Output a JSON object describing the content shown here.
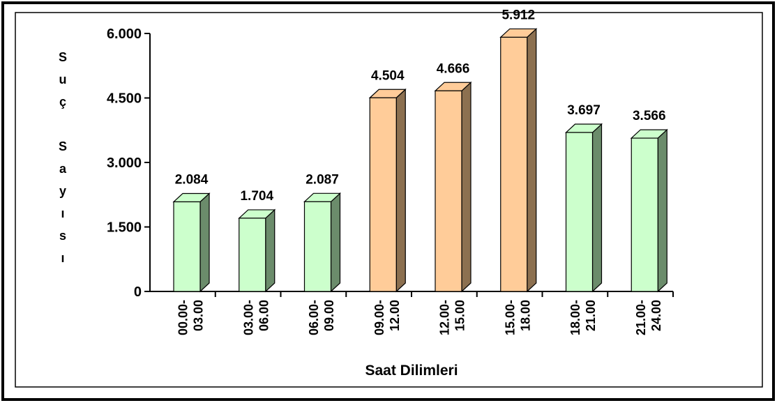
{
  "chart_data": {
    "type": "bar3d",
    "x_label": "Saat Dilimleri",
    "y_label": "Suç Sayısı",
    "categories": [
      "00.00- 03.00",
      "03.00- 06.00",
      "06.00- 09.00",
      "09.00- 12.00",
      "12.00- 15.00",
      "15.00- 18.00",
      "18.00- 21.00",
      "21.00- 24.00"
    ],
    "values": [
      2084,
      1704,
      2087,
      4504,
      4666,
      5912,
      3697,
      3566
    ],
    "value_labels": [
      "2.084",
      "1.704",
      "2.087",
      "4.504",
      "4.666",
      "5.912",
      "3.697",
      "3.566"
    ],
    "colors": [
      "#ccffcc",
      "#ccffcc",
      "#ccffcc",
      "#ffcc99",
      "#ffcc99",
      "#ffcc99",
      "#ccffcc",
      "#ccffcc"
    ],
    "ylim": [
      0,
      6000
    ],
    "yticks": [
      0,
      {
        "value": 1500,
        "label": "1.500"
      },
      {
        "value": 3000,
        "label": "3.000"
      },
      {
        "value": 4500,
        "label": "4.500"
      },
      {
        "value": 6000,
        "label": "6.000"
      }
    ]
  }
}
